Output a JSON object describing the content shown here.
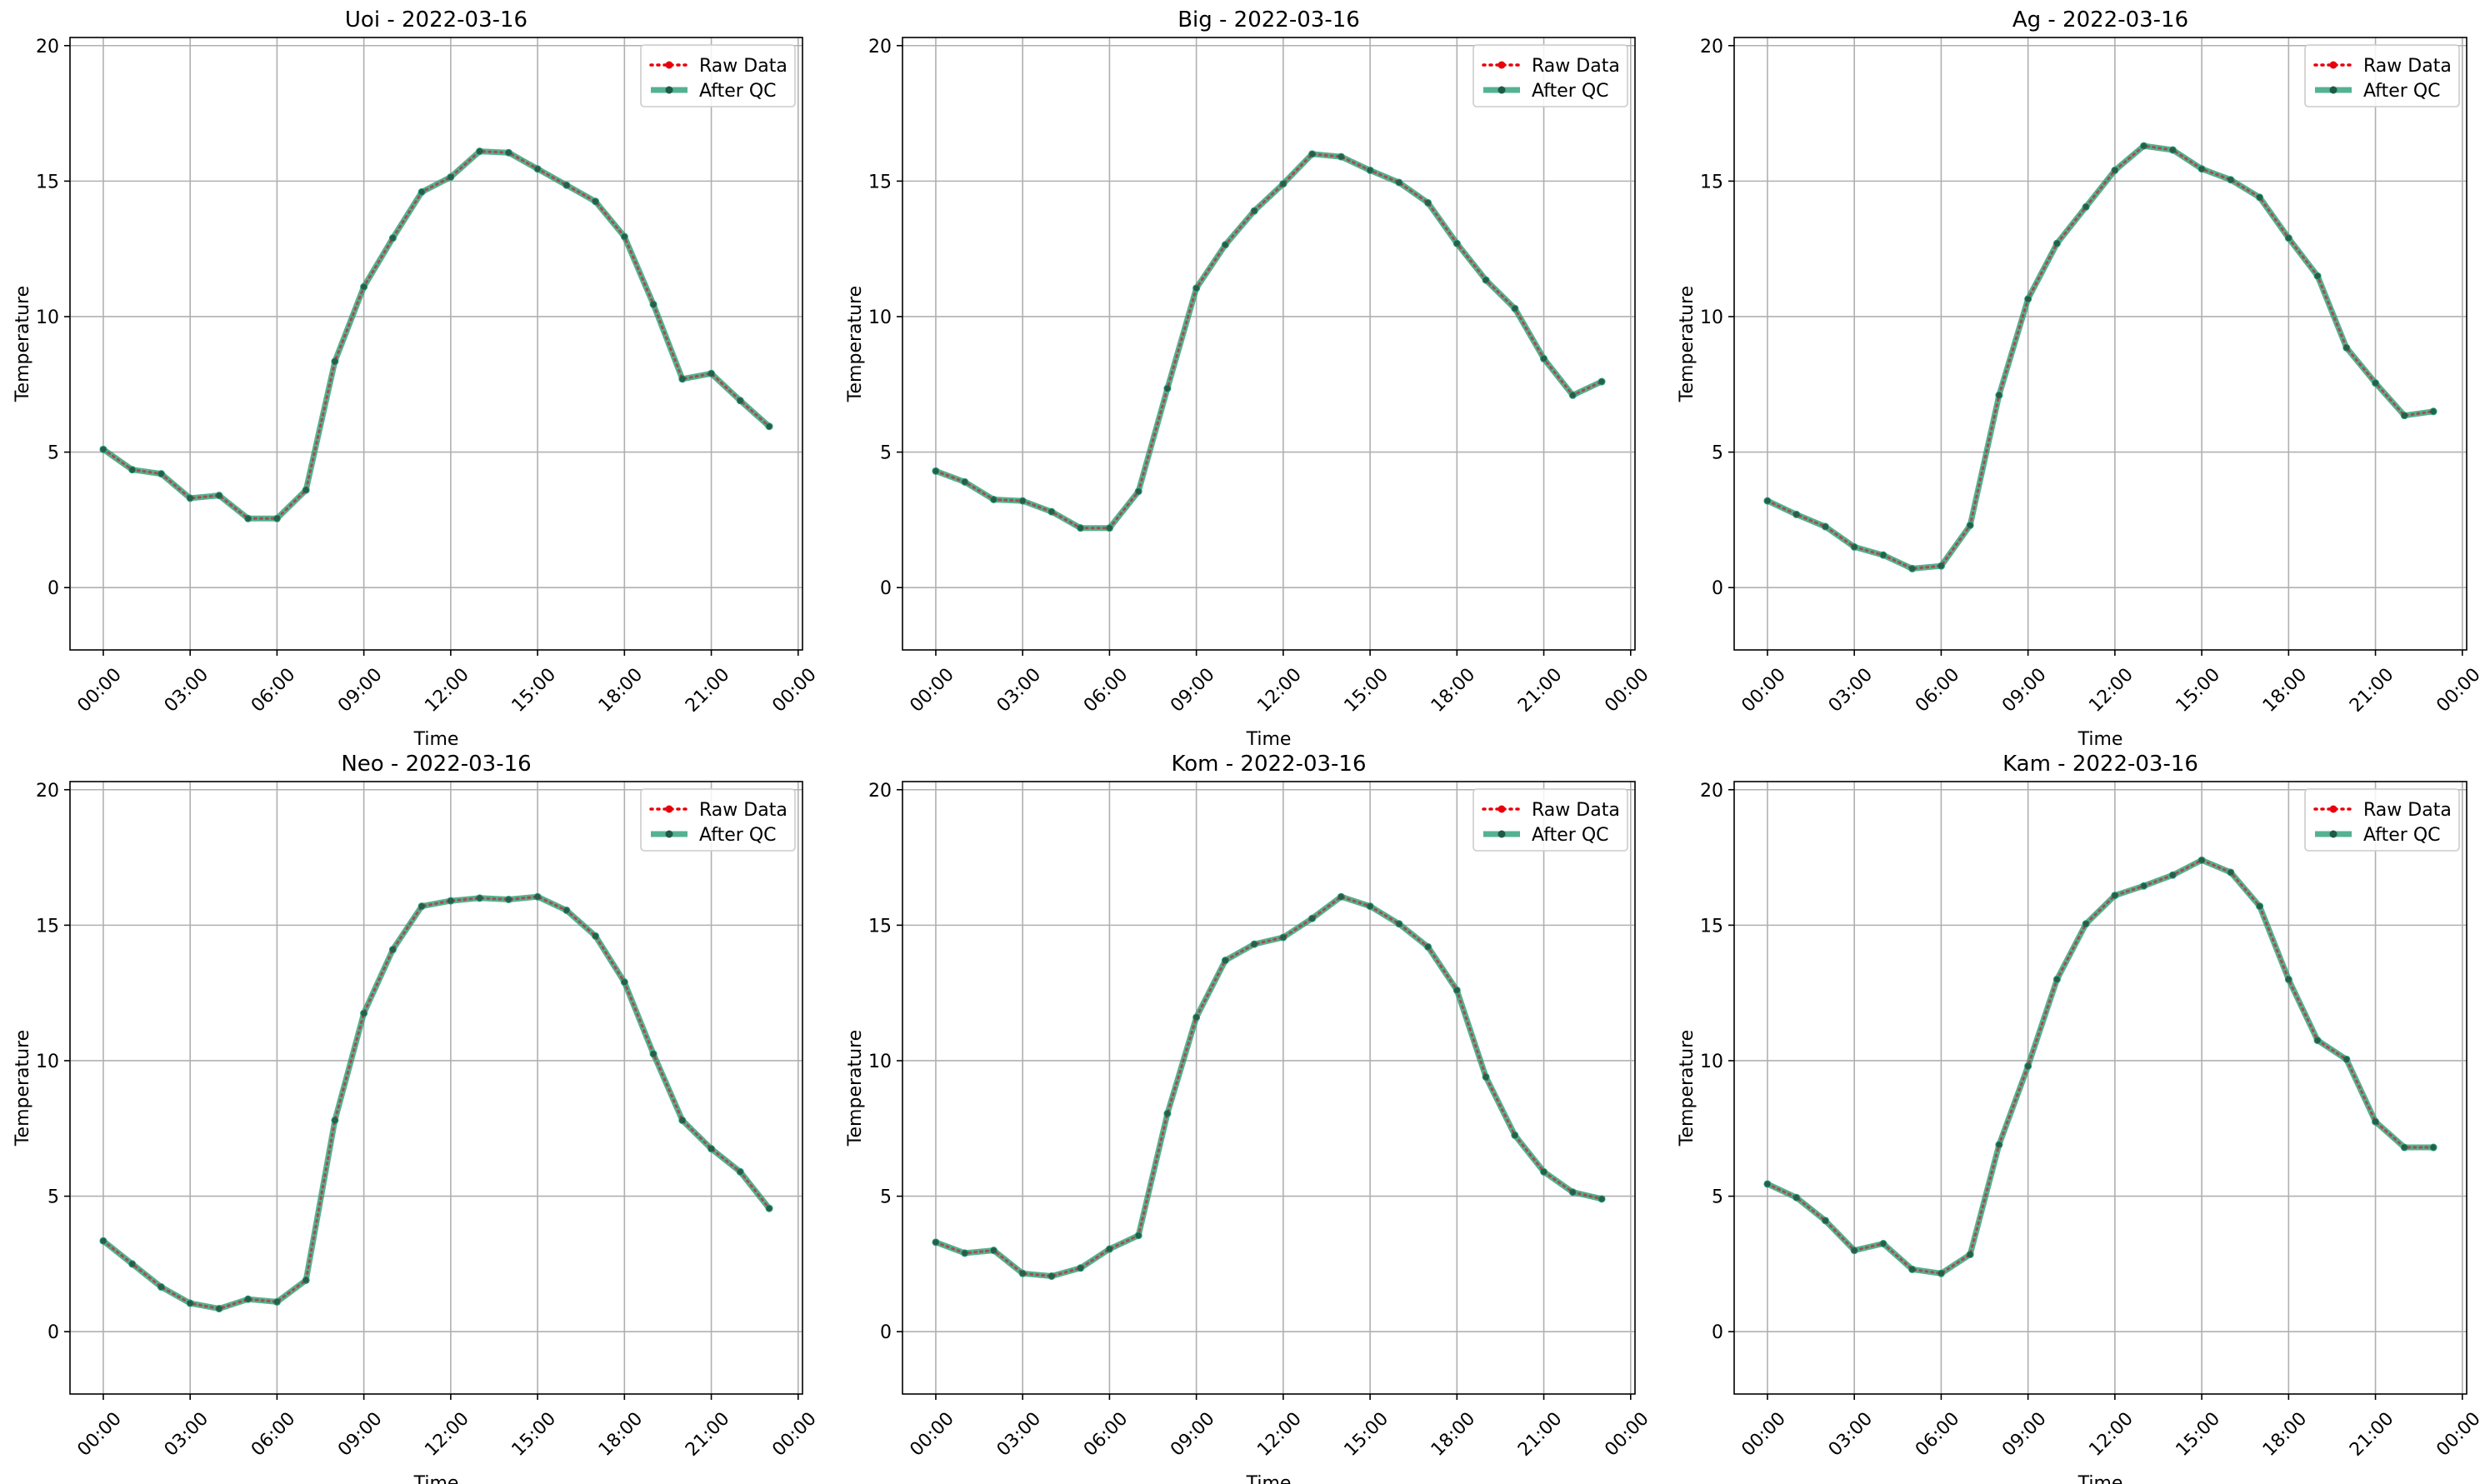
{
  "chart_data": [
    {
      "type": "line",
      "title": "Uoi - 2022-03-16",
      "xlabel": "Time",
      "ylabel": "Temperature",
      "ylim": [
        -2.3,
        20.3
      ],
      "yticks": [
        0,
        5,
        10,
        15,
        20
      ],
      "xlim": [
        -1.15,
        24.15
      ],
      "xticks": [
        0,
        3,
        6,
        9,
        12,
        15,
        18,
        21,
        24
      ],
      "xticklabels": [
        "00:00",
        "03:00",
        "06:00",
        "09:00",
        "12:00",
        "15:00",
        "18:00",
        "21:00",
        "00:00"
      ],
      "grid": true,
      "legend_position": "top-right",
      "x": [
        0,
        1,
        2,
        3,
        4,
        5,
        6,
        7,
        8,
        9,
        10,
        11,
        12,
        13,
        14,
        15,
        16,
        17,
        18,
        19,
        20,
        21,
        22,
        23
      ],
      "series": [
        {
          "name": "Raw Data",
          "color": "#e8000b",
          "values": [
            5.1,
            4.35,
            4.2,
            3.3,
            3.4,
            2.55,
            2.55,
            3.6,
            8.35,
            11.1,
            12.9,
            14.6,
            15.15,
            16.1,
            16.05,
            15.45,
            14.85,
            14.25,
            12.95,
            10.45,
            7.7,
            7.9,
            6.9,
            5.95
          ]
        },
        {
          "name": "After QC",
          "color": "#2a9d78",
          "values": [
            5.1,
            4.35,
            4.2,
            3.3,
            3.4,
            2.55,
            2.55,
            3.6,
            8.35,
            11.1,
            12.9,
            14.6,
            15.15,
            16.1,
            16.05,
            15.45,
            14.85,
            14.25,
            12.95,
            10.45,
            7.7,
            7.9,
            6.9,
            5.95
          ]
        }
      ]
    },
    {
      "type": "line",
      "title": "Big - 2022-03-16",
      "xlabel": "Time",
      "ylabel": "Temperature",
      "ylim": [
        -2.3,
        20.3
      ],
      "yticks": [
        0,
        5,
        10,
        15,
        20
      ],
      "xlim": [
        -1.15,
        24.15
      ],
      "xticks": [
        0,
        3,
        6,
        9,
        12,
        15,
        18,
        21,
        24
      ],
      "xticklabels": [
        "00:00",
        "03:00",
        "06:00",
        "09:00",
        "12:00",
        "15:00",
        "18:00",
        "21:00",
        "00:00"
      ],
      "grid": true,
      "legend_position": "top-right",
      "x": [
        0,
        1,
        2,
        3,
        4,
        5,
        6,
        7,
        8,
        9,
        10,
        11,
        12,
        13,
        14,
        15,
        16,
        17,
        18,
        19,
        20,
        21,
        22,
        23
      ],
      "series": [
        {
          "name": "Raw Data",
          "color": "#e8000b",
          "values": [
            4.3,
            3.9,
            3.25,
            3.2,
            2.8,
            2.2,
            2.2,
            3.55,
            7.35,
            11.05,
            12.65,
            13.9,
            14.9,
            16.0,
            15.9,
            15.4,
            14.95,
            14.2,
            12.7,
            11.35,
            10.3,
            8.45,
            7.1,
            7.6
          ]
        },
        {
          "name": "After QC",
          "color": "#2a9d78",
          "values": [
            4.3,
            3.9,
            3.25,
            3.2,
            2.8,
            2.2,
            2.2,
            3.55,
            7.35,
            11.05,
            12.65,
            13.9,
            14.9,
            16.0,
            15.9,
            15.4,
            14.95,
            14.2,
            12.7,
            11.35,
            10.3,
            8.45,
            7.1,
            7.6
          ]
        }
      ]
    },
    {
      "type": "line",
      "title": "Ag - 2022-03-16",
      "xlabel": "Time",
      "ylabel": "Temperature",
      "ylim": [
        -2.3,
        20.3
      ],
      "yticks": [
        0,
        5,
        10,
        15,
        20
      ],
      "xlim": [
        -1.15,
        24.15
      ],
      "xticks": [
        0,
        3,
        6,
        9,
        12,
        15,
        18,
        21,
        24
      ],
      "xticklabels": [
        "00:00",
        "03:00",
        "06:00",
        "09:00",
        "12:00",
        "15:00",
        "18:00",
        "21:00",
        "00:00"
      ],
      "grid": true,
      "legend_position": "top-right",
      "x": [
        0,
        1,
        2,
        3,
        4,
        5,
        6,
        7,
        8,
        9,
        10,
        11,
        12,
        13,
        14,
        15,
        16,
        17,
        18,
        19,
        20,
        21,
        22,
        23
      ],
      "series": [
        {
          "name": "Raw Data",
          "color": "#e8000b",
          "values": [
            3.2,
            2.7,
            2.25,
            1.5,
            1.2,
            0.7,
            0.8,
            2.3,
            7.1,
            10.65,
            12.7,
            14.05,
            15.4,
            16.3,
            16.15,
            15.45,
            15.05,
            14.4,
            12.9,
            11.5,
            8.85,
            7.55,
            6.35,
            6.5
          ]
        },
        {
          "name": "After QC",
          "color": "#2a9d78",
          "values": [
            3.2,
            2.7,
            2.25,
            1.5,
            1.2,
            0.7,
            0.8,
            2.3,
            7.1,
            10.65,
            12.7,
            14.05,
            15.4,
            16.3,
            16.15,
            15.45,
            15.05,
            14.4,
            12.9,
            11.5,
            8.85,
            7.55,
            6.35,
            6.5
          ]
        }
      ]
    },
    {
      "type": "line",
      "title": "Neo - 2022-03-16",
      "xlabel": "Time",
      "ylabel": "Temperature",
      "ylim": [
        -2.3,
        20.3
      ],
      "yticks": [
        0,
        5,
        10,
        15,
        20
      ],
      "xlim": [
        -1.15,
        24.15
      ],
      "xticks": [
        0,
        3,
        6,
        9,
        12,
        15,
        18,
        21,
        24
      ],
      "xticklabels": [
        "00:00",
        "03:00",
        "06:00",
        "09:00",
        "12:00",
        "15:00",
        "18:00",
        "21:00",
        "00:00"
      ],
      "grid": true,
      "legend_position": "top-right",
      "x": [
        0,
        1,
        2,
        3,
        4,
        5,
        6,
        7,
        8,
        9,
        10,
        11,
        12,
        13,
        14,
        15,
        16,
        17,
        18,
        19,
        20,
        21,
        22,
        23
      ],
      "series": [
        {
          "name": "Raw Data",
          "color": "#e8000b",
          "values": [
            3.35,
            2.5,
            1.65,
            1.05,
            0.85,
            1.2,
            1.1,
            1.9,
            7.8,
            11.75,
            14.1,
            15.7,
            15.9,
            16.0,
            15.95,
            16.05,
            15.55,
            14.6,
            12.9,
            10.25,
            7.8,
            6.75,
            5.9,
            4.55
          ]
        },
        {
          "name": "After QC",
          "color": "#2a9d78",
          "values": [
            3.35,
            2.5,
            1.65,
            1.05,
            0.85,
            1.2,
            1.1,
            1.9,
            7.8,
            11.75,
            14.1,
            15.7,
            15.9,
            16.0,
            15.95,
            16.05,
            15.55,
            14.6,
            12.9,
            10.25,
            7.8,
            6.75,
            5.9,
            4.55
          ]
        }
      ]
    },
    {
      "type": "line",
      "title": "Kom - 2022-03-16",
      "xlabel": "Time",
      "ylabel": "Temperature",
      "ylim": [
        -2.3,
        20.3
      ],
      "yticks": [
        0,
        5,
        10,
        15,
        20
      ],
      "xlim": [
        -1.15,
        24.15
      ],
      "xticks": [
        0,
        3,
        6,
        9,
        12,
        15,
        18,
        21,
        24
      ],
      "xticklabels": [
        "00:00",
        "03:00",
        "06:00",
        "09:00",
        "12:00",
        "15:00",
        "18:00",
        "21:00",
        "00:00"
      ],
      "grid": true,
      "legend_position": "top-right",
      "x": [
        0,
        1,
        2,
        3,
        4,
        5,
        6,
        7,
        8,
        9,
        10,
        11,
        12,
        13,
        14,
        15,
        16,
        17,
        18,
        19,
        20,
        21,
        22,
        23
      ],
      "series": [
        {
          "name": "Raw Data",
          "color": "#e8000b",
          "values": [
            3.3,
            2.9,
            3.0,
            2.15,
            2.05,
            2.35,
            3.05,
            3.55,
            8.05,
            11.6,
            13.7,
            14.3,
            14.55,
            15.25,
            16.05,
            15.7,
            15.05,
            14.2,
            12.6,
            9.4,
            7.25,
            5.9,
            5.15,
            4.9
          ]
        },
        {
          "name": "After QC",
          "color": "#2a9d78",
          "values": [
            3.3,
            2.9,
            3.0,
            2.15,
            2.05,
            2.35,
            3.05,
            3.55,
            8.05,
            11.6,
            13.7,
            14.3,
            14.55,
            15.25,
            16.05,
            15.7,
            15.05,
            14.2,
            12.6,
            9.4,
            7.25,
            5.9,
            5.15,
            4.9
          ]
        }
      ]
    },
    {
      "type": "line",
      "title": "Kam - 2022-03-16",
      "xlabel": "Time",
      "ylabel": "Temperature",
      "ylim": [
        -2.3,
        20.3
      ],
      "yticks": [
        0,
        5,
        10,
        15,
        20
      ],
      "xlim": [
        -1.15,
        24.15
      ],
      "xticks": [
        0,
        3,
        6,
        9,
        12,
        15,
        18,
        21,
        24
      ],
      "xticklabels": [
        "00:00",
        "03:00",
        "06:00",
        "09:00",
        "12:00",
        "15:00",
        "18:00",
        "21:00",
        "00:00"
      ],
      "grid": true,
      "legend_position": "top-right",
      "x": [
        0,
        1,
        2,
        3,
        4,
        5,
        6,
        7,
        8,
        9,
        10,
        11,
        12,
        13,
        14,
        15,
        16,
        17,
        18,
        19,
        20,
        21,
        22,
        23
      ],
      "series": [
        {
          "name": "Raw Data",
          "color": "#e8000b",
          "values": [
            5.45,
            4.95,
            4.1,
            3.0,
            3.25,
            2.3,
            2.15,
            2.85,
            6.9,
            9.8,
            13.0,
            15.05,
            16.1,
            16.45,
            16.85,
            17.4,
            16.95,
            15.7,
            13.0,
            10.75,
            10.05,
            7.75,
            6.8,
            6.8
          ]
        },
        {
          "name": "After QC",
          "color": "#2a9d78",
          "values": [
            5.45,
            4.95,
            4.1,
            3.0,
            3.25,
            2.3,
            2.15,
            2.85,
            6.9,
            9.8,
            13.0,
            15.05,
            16.1,
            16.45,
            16.85,
            17.4,
            16.95,
            15.7,
            13.0,
            10.75,
            10.05,
            7.75,
            6.8,
            6.8
          ]
        }
      ]
    }
  ]
}
